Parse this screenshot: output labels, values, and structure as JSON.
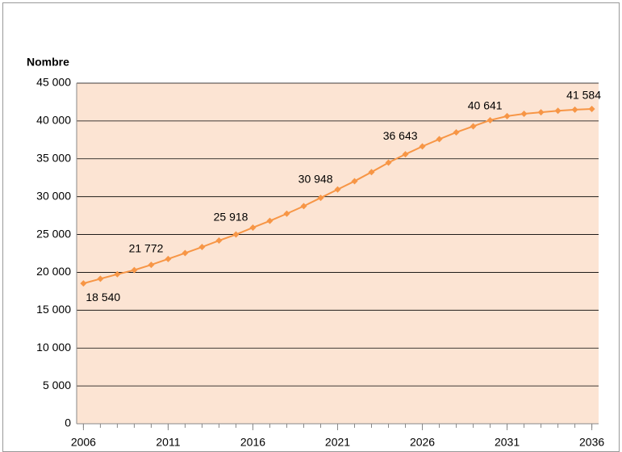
{
  "chart_data": {
    "type": "line",
    "y_axis_title": "Nombre",
    "x": [
      2006,
      2007,
      2008,
      2009,
      2010,
      2011,
      2012,
      2013,
      2014,
      2015,
      2016,
      2017,
      2018,
      2019,
      2020,
      2021,
      2022,
      2023,
      2024,
      2025,
      2026,
      2027,
      2028,
      2029,
      2030,
      2031,
      2032,
      2033,
      2034,
      2035,
      2036
    ],
    "series": [
      {
        "name": "Nombre",
        "color": "#f79646",
        "values": [
          18540,
          19150,
          19750,
          20300,
          21000,
          21772,
          22550,
          23350,
          24200,
          25000,
          25918,
          26800,
          27750,
          28750,
          29850,
          30948,
          32050,
          33250,
          34500,
          35600,
          36643,
          37600,
          38500,
          39300,
          40100,
          40641,
          40950,
          41150,
          41350,
          41500,
          41584
        ],
        "value_labels": [
          "18 540",
          null,
          null,
          null,
          null,
          "21 772",
          null,
          null,
          null,
          null,
          "25 918",
          null,
          null,
          null,
          null,
          "30 948",
          null,
          null,
          null,
          null,
          "36 643",
          null,
          null,
          null,
          null,
          "40 641",
          null,
          null,
          null,
          null,
          "41 584"
        ]
      }
    ],
    "xlim": [
      2005.6,
      2036.4
    ],
    "xticks": [
      2006,
      2011,
      2016,
      2021,
      2026,
      2031,
      2036
    ],
    "ylim": [
      0,
      45000
    ],
    "yticks": [
      0,
      {
        "value": 5000,
        "label": "5 000"
      },
      {
        "value": 10000,
        "label": "10 000"
      },
      {
        "value": 15000,
        "label": "15 000"
      },
      {
        "value": 20000,
        "label": "20 000"
      },
      {
        "value": 25000,
        "label": "25 000"
      },
      {
        "value": 30000,
        "label": "30 000"
      },
      {
        "value": 35000,
        "label": "35 000"
      },
      {
        "value": 40000,
        "label": "40 000"
      },
      {
        "value": 45000,
        "label": "45 000"
      }
    ],
    "grid": true,
    "plot_background": "#fce4d3"
  }
}
